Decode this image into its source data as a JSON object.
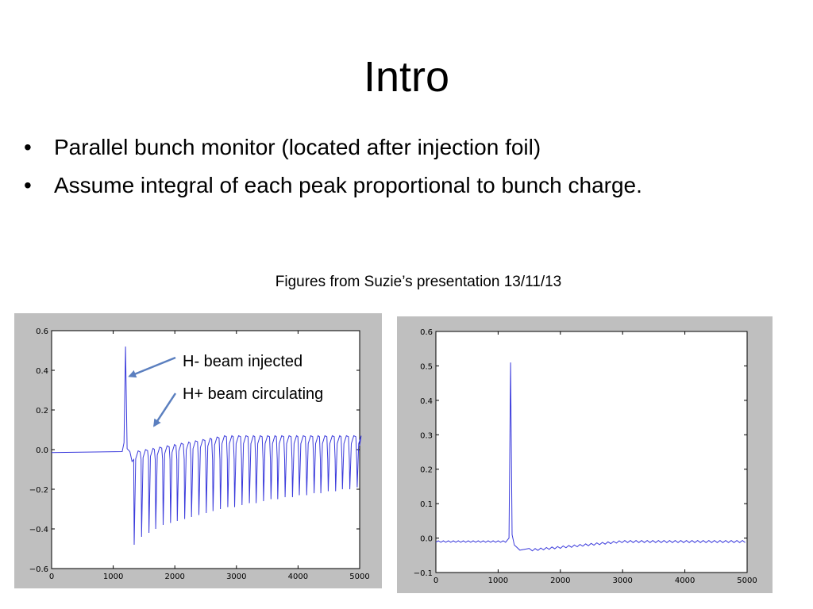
{
  "slide": {
    "title": "Intro",
    "bullets": [
      "Parallel bunch monitor (located after injection foil)",
      "Assume integral of each peak proportional to bunch charge."
    ],
    "bullet_symbol": "•",
    "caption": "Figures from Suzie’s presentation 13/11/13"
  },
  "colors": {
    "trace": "#3b3bdc",
    "arrow": "#5b7fbf",
    "panel_bg": "#bfbfbf"
  },
  "chart_data": [
    {
      "type": "line",
      "xlim": [
        0,
        5000
      ],
      "ylim": [
        -0.6,
        0.6
      ],
      "xticks": [
        0,
        1000,
        2000,
        3000,
        4000,
        5000
      ],
      "yticks": [
        -0.6,
        -0.4,
        -0.2,
        0.0,
        0.2,
        0.4,
        0.6
      ],
      "xtick_labels": [
        "0",
        "1000",
        "2000",
        "3000",
        "4000",
        "5000"
      ],
      "ytick_labels": [
        "−0.6",
        "−0.4",
        "−0.2",
        "0.0",
        "0.2",
        "0.4",
        "0.6"
      ],
      "baseline": -0.015,
      "injection_peak": {
        "x": 1200,
        "y": 0.52
      },
      "bunch_troughs_x": [
        1340,
        1460,
        1580,
        1690,
        1810,
        1930,
        2040,
        2160,
        2270,
        2390,
        2510,
        2620,
        2740,
        2860,
        2970,
        3090,
        3210,
        3320,
        3440,
        3560,
        3670,
        3790,
        3910,
        4020,
        4140,
        4260,
        4370,
        4490,
        4610,
        4720,
        4840,
        4960
      ],
      "bunch_troughs_y": [
        -0.48,
        -0.44,
        -0.42,
        -0.4,
        -0.38,
        -0.37,
        -0.36,
        -0.35,
        -0.34,
        -0.33,
        -0.32,
        -0.31,
        -0.3,
        -0.29,
        -0.29,
        -0.28,
        -0.27,
        -0.27,
        -0.26,
        -0.25,
        -0.25,
        -0.24,
        -0.24,
        -0.23,
        -0.23,
        -0.22,
        -0.22,
        -0.21,
        -0.21,
        -0.2,
        -0.2,
        -0.19
      ],
      "bunch_crests_y": 0.07,
      "annotations": [
        {
          "text": "H- beam injected",
          "target": [
            1200,
            0.37
          ]
        },
        {
          "text": "H+ beam circulating",
          "target": [
            1600,
            0.12
          ]
        }
      ]
    },
    {
      "type": "line",
      "xlim": [
        0,
        5000
      ],
      "ylim": [
        -0.1,
        0.6
      ],
      "xticks": [
        0,
        1000,
        2000,
        3000,
        4000,
        5000
      ],
      "yticks": [
        -0.1,
        0.0,
        0.1,
        0.2,
        0.3,
        0.4,
        0.5,
        0.6
      ],
      "xtick_labels": [
        "0",
        "1000",
        "2000",
        "3000",
        "4000",
        "5000"
      ],
      "ytick_labels": [
        "−0.1",
        "0.0",
        "0.1",
        "0.2",
        "0.3",
        "0.4",
        "0.5",
        "0.6"
      ],
      "baseline": -0.01,
      "injection_peak": {
        "x": 1200,
        "y": 0.51
      },
      "dip_min": {
        "x": 1350,
        "y": -0.035
      },
      "tail_end": {
        "x": 5000,
        "y": -0.01
      }
    }
  ]
}
